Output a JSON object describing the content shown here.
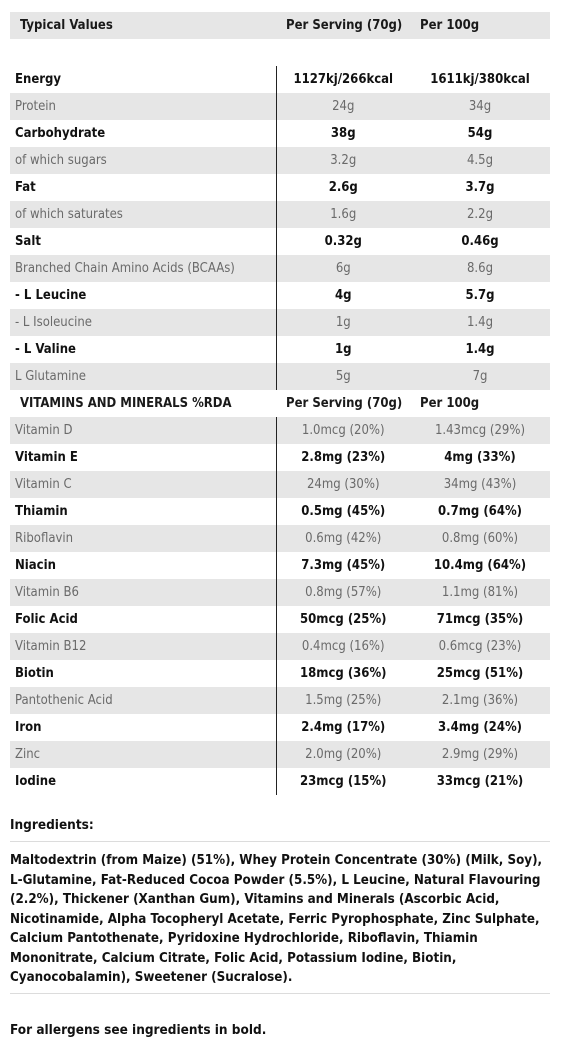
{
  "table": {
    "header": {
      "label": "Typical Values",
      "col1": "Per Serving (70g)",
      "col2": "Per 100g"
    },
    "rows": [
      {
        "label": "Energy",
        "v1": "1127kj/266kcal",
        "v2": "1611kj/380kcal",
        "bold": true,
        "shade": false
      },
      {
        "label": "Protein",
        "v1": "24g",
        "v2": "34g",
        "bold": false,
        "shade": true
      },
      {
        "label": "Carbohydrate",
        "v1": "38g",
        "v2": "54g",
        "bold": true,
        "shade": false
      },
      {
        "label": "of which sugars",
        "v1": "3.2g",
        "v2": "4.5g",
        "bold": false,
        "shade": true
      },
      {
        "label": "Fat",
        "v1": "2.6g",
        "v2": "3.7g",
        "bold": true,
        "shade": false
      },
      {
        "label": "of which saturates",
        "v1": "1.6g",
        "v2": "2.2g",
        "bold": false,
        "shade": true
      },
      {
        "label": "Salt",
        "v1": "0.32g",
        "v2": "0.46g",
        "bold": true,
        "shade": false
      },
      {
        "label": "Branched Chain Amino Acids (BCAAs)",
        "v1": "6g",
        "v2": "8.6g",
        "bold": false,
        "shade": true
      },
      {
        "label": "- L Leucine",
        "v1": "4g",
        "v2": "5.7g",
        "bold": true,
        "shade": false
      },
      {
        "label": "- L Isoleucine",
        "v1": "1g",
        "v2": "1.4g",
        "bold": false,
        "shade": true
      },
      {
        "label": "- L Valine",
        "v1": "1g",
        "v2": "1.4g",
        "bold": true,
        "shade": false
      },
      {
        "label": "L Glutamine",
        "v1": "5g",
        "v2": "7g",
        "bold": false,
        "shade": true
      }
    ],
    "vitamins_header": {
      "label": "VITAMINS AND MINERALS %RDA",
      "col1": "Per Serving (70g)",
      "col2": "Per 100g"
    },
    "vitamin_rows": [
      {
        "label": "Vitamin D",
        "v1": "1.0mcg (20%)",
        "v2": "1.43mcg (29%)",
        "bold": false,
        "shade": true
      },
      {
        "label": "Vitamin E",
        "v1": "2.8mg (23%)",
        "v2": "4mg (33%)",
        "bold": true,
        "shade": false
      },
      {
        "label": "Vitamin C",
        "v1": "24mg (30%)",
        "v2": "34mg (43%)",
        "bold": false,
        "shade": true
      },
      {
        "label": "Thiamin",
        "v1": "0.5mg (45%)",
        "v2": "0.7mg (64%)",
        "bold": true,
        "shade": false
      },
      {
        "label": "Riboflavin",
        "v1": "0.6mg (42%)",
        "v2": "0.8mg (60%)",
        "bold": false,
        "shade": true
      },
      {
        "label": "Niacin",
        "v1": "7.3mg (45%)",
        "v2": "10.4mg (64%)",
        "bold": true,
        "shade": false
      },
      {
        "label": "Vitamin B6",
        "v1": "0.8mg (57%)",
        "v2": "1.1mg (81%)",
        "bold": false,
        "shade": true
      },
      {
        "label": "Folic Acid",
        "v1": "50mcg (25%)",
        "v2": "71mcg (35%)",
        "bold": true,
        "shade": false
      },
      {
        "label": "Vitamin B12",
        "v1": "0.4mcg (16%)",
        "v2": "0.6mcg (23%)",
        "bold": false,
        "shade": true
      },
      {
        "label": "Biotin",
        "v1": "18mcg (36%)",
        "v2": "25mcg (51%)",
        "bold": true,
        "shade": false
      },
      {
        "label": "Pantothenic Acid",
        "v1": "1.5mg (25%)",
        "v2": "2.1mg (36%)",
        "bold": false,
        "shade": true
      },
      {
        "label": "Iron",
        "v1": "2.4mg (17%)",
        "v2": "3.4mg (24%)",
        "bold": true,
        "shade": false
      },
      {
        "label": "Zinc",
        "v1": "2.0mg (20%)",
        "v2": "2.9mg (29%)",
        "bold": false,
        "shade": true
      },
      {
        "label": "Iodine",
        "v1": "23mcg (15%)",
        "v2": "33mcg (21%)",
        "bold": true,
        "shade": false
      }
    ]
  },
  "ingredients": {
    "title": "Ingredients:",
    "text": "Maltodextrin (from Maize) (51%), Whey Protein Concentrate (30%) (Milk, Soy), L-Glutamine, Fat-Reduced Cocoa Powder (5.5%), L Leucine, Natural Flavouring (2.2%), Thickener (Xanthan Gum), Vitamins and Minerals (Ascorbic Acid, Nicotinamide, Alpha Tocopheryl Acetate, Ferric Pyrophosphate, Zinc Sulphate, Calcium Pantothenate, Pyridoxine Hydrochloride, Riboflavin, Thiamin Mononitrate, Calcium Citrate, Folic Acid, Potassium Iodine, Biotin, Cyanocobalamin), Sweetener (Sucralose)."
  },
  "allergen_note": "For allergens see ingredients in bold."
}
